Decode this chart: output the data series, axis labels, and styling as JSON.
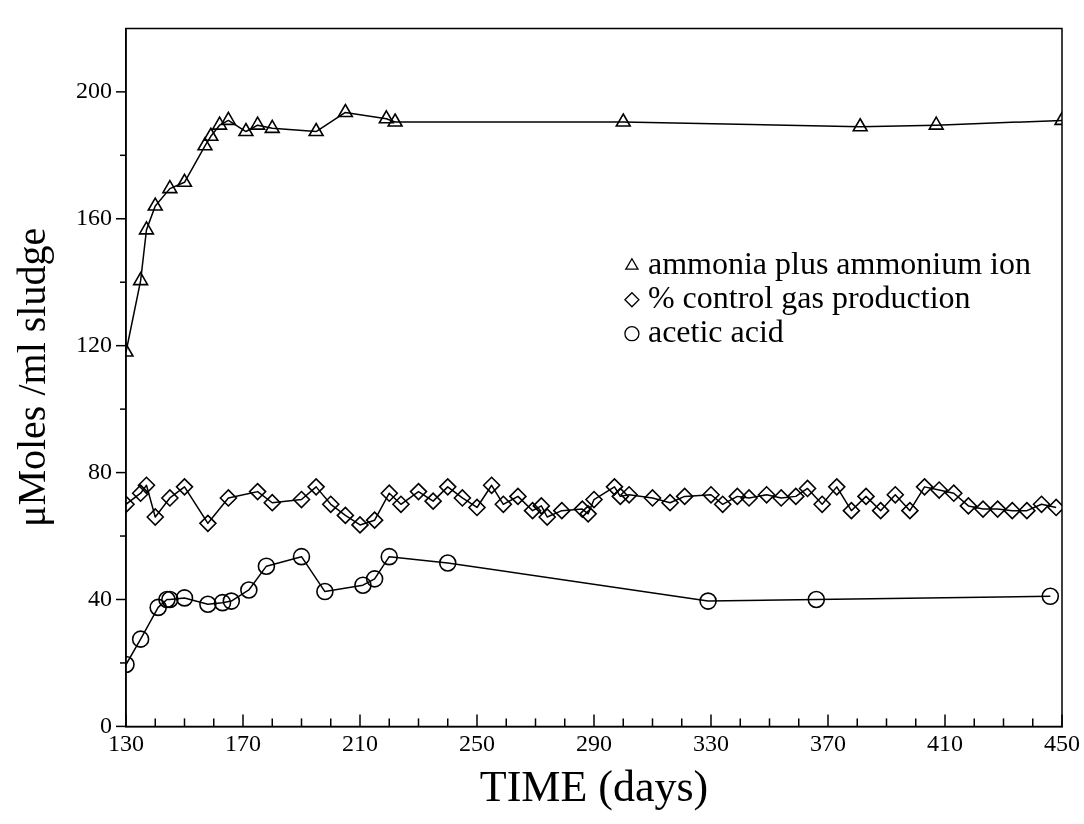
{
  "chart_data": {
    "type": "line",
    "xlabel": "TIME (days)",
    "ylabel": "μMoles /ml sludge",
    "xlim": [
      130,
      450
    ],
    "ylim": [
      0,
      220
    ],
    "xticks": [
      130,
      {
        "value": 140,
        "label": null
      },
      {
        "value": 150,
        "label": null
      },
      {
        "value": 160,
        "label": null
      },
      170,
      {
        "value": 180,
        "label": null
      },
      {
        "value": 190,
        "label": null
      },
      {
        "value": 200,
        "label": null
      },
      210,
      {
        "value": 220,
        "label": null
      },
      {
        "value": 230,
        "label": null
      },
      {
        "value": 240,
        "label": null
      },
      250,
      {
        "value": 260,
        "label": null
      },
      {
        "value": 270,
        "label": null
      },
      {
        "value": 280,
        "label": null
      },
      290,
      {
        "value": 300,
        "label": null
      },
      {
        "value": 310,
        "label": null
      },
      {
        "value": 320,
        "label": null
      },
      330,
      {
        "value": 340,
        "label": null
      },
      {
        "value": 350,
        "label": null
      },
      {
        "value": 360,
        "label": null
      },
      370,
      {
        "value": 380,
        "label": null
      },
      {
        "value": 390,
        "label": null
      },
      {
        "value": 400,
        "label": null
      },
      410,
      {
        "value": 420,
        "label": null
      },
      {
        "value": 430,
        "label": null
      },
      {
        "value": 440,
        "label": null
      },
      450
    ],
    "yticks": [
      0,
      {
        "value": 20,
        "label": null
      },
      40,
      {
        "value": 60,
        "label": null
      },
      80,
      {
        "value": 100,
        "label": null
      },
      120,
      {
        "value": 140,
        "label": null
      },
      160,
      {
        "value": 180,
        "label": null
      },
      200
    ],
    "legend": "right",
    "grid": false,
    "line_style": "solid",
    "series": [
      {
        "name": "ammonia plus ammonium ion",
        "color": "#000000",
        "marker": "triangle",
        "x": [
          130,
          135,
          137,
          140,
          145,
          150,
          157,
          159,
          162,
          165,
          171,
          175,
          180,
          195,
          205,
          219,
          222,
          300,
          381,
          407,
          450
        ],
        "values": [
          118,
          140.5,
          156.5,
          164,
          169.5,
          171.5,
          183,
          186,
          189.5,
          191,
          187.5,
          189.5,
          188.5,
          187.5,
          193.5,
          191.5,
          190.5,
          190.5,
          189,
          189.5,
          191
        ]
      },
      {
        "name": "% control gas production",
        "color": "#000000",
        "marker": "diamond",
        "x": [
          130,
          135,
          137,
          140,
          145,
          150,
          158,
          165,
          175,
          180,
          190,
          195,
          200,
          205,
          210,
          215,
          220,
          224,
          230,
          235,
          240,
          245,
          250,
          255,
          259,
          264,
          269,
          272,
          274,
          279,
          286,
          288,
          290,
          297,
          299,
          302,
          310,
          316,
          321,
          330,
          334,
          339,
          343,
          349,
          354,
          359,
          363,
          368,
          373,
          378,
          383,
          388,
          393,
          398,
          403,
          408,
          413,
          418,
          423,
          428,
          433,
          438,
          443,
          448
        ],
        "values": [
          70,
          73.5,
          76,
          66,
          72,
          75.5,
          64,
          72,
          74,
          70.5,
          71.5,
          75.5,
          70,
          66.5,
          63.5,
          65,
          73.5,
          70,
          74,
          71,
          75.5,
          72,
          69,
          76,
          70,
          72.5,
          68,
          69.5,
          66,
          68,
          68.5,
          67,
          71.5,
          75.5,
          72.5,
          73,
          72,
          70.5,
          72.5,
          73,
          70,
          72.5,
          72,
          73,
          72,
          72.5,
          75,
          70,
          75.5,
          68,
          72.5,
          68,
          73,
          68,
          75.5,
          74.5,
          73.5,
          69.5,
          68.5,
          68.5,
          68,
          68,
          70,
          69
        ]
      },
      {
        "name": "acetic acid",
        "color": "#000000",
        "marker": "circle",
        "x": [
          130,
          135,
          141,
          144,
          145,
          150,
          158,
          163,
          166,
          172,
          178,
          190,
          198,
          211,
          215,
          220,
          240,
          329,
          366,
          446
        ],
        "values": [
          19.5,
          27.5,
          37.5,
          40,
          40,
          40.5,
          38.5,
          39,
          39.5,
          43,
          50.5,
          53.5,
          42.5,
          44.5,
          46.5,
          53.5,
          51.5,
          39.5,
          40,
          41
        ]
      }
    ]
  }
}
